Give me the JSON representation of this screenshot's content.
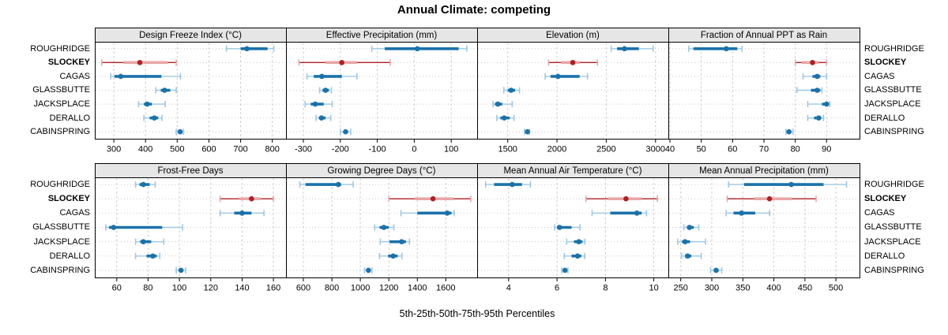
{
  "title": "Annual Climate: competing",
  "xlabel": "5th-25th-50th-75th-95th Percentiles",
  "sites": [
    {
      "name": "ROUGHRIDGE",
      "highlight": false
    },
    {
      "name": "SLOCKEY",
      "highlight": true
    },
    {
      "name": "CAGAS",
      "highlight": false
    },
    {
      "name": "GLASSBUTTE",
      "highlight": false
    },
    {
      "name": "JACKSPLACE",
      "highlight": false
    },
    {
      "name": "DERALLO",
      "highlight": false
    },
    {
      "name": "CABINSPRING",
      "highlight": false
    }
  ],
  "colors": {
    "blue": "#1a72ab",
    "blue_light": "#9ec8e2",
    "red": "#b01f24",
    "red_light": "#e8a6a6",
    "grid": "#c9c9c9",
    "strip_bg": "#e6e6e6",
    "border": "#000000"
  },
  "chart_data": {
    "type": "dotplot-percentiles",
    "title": "Annual Climate: competing",
    "xlabel": "5th-25th-50th-75th-95th Percentiles",
    "percentile_labels": [
      "5th",
      "25th",
      "50th",
      "75th",
      "95th"
    ],
    "rows": [
      "ROUGHRIDGE",
      "SLOCKEY",
      "CAGAS",
      "GLASSBUTTE",
      "JACKSPLACE",
      "DERALLO",
      "CABINSPRING"
    ],
    "highlight_row": "SLOCKEY",
    "legend_position": "none",
    "grid": true,
    "panels": [
      {
        "title": "Design Freeze Index (°C)",
        "grid_row": 1,
        "ticks": [
          300,
          400,
          500,
          600,
          700,
          800
        ],
        "xlim": [
          240,
          843
        ],
        "values": [
          [
            655,
            700,
            720,
            785,
            805
          ],
          [
            262,
            330,
            382,
            470,
            497
          ],
          [
            290,
            302,
            322,
            450,
            510
          ],
          [
            432,
            448,
            460,
            478,
            497
          ],
          [
            378,
            395,
            405,
            420,
            462
          ],
          [
            395,
            413,
            428,
            440,
            452
          ],
          [
            497,
            504,
            509,
            514,
            519
          ]
        ]
      },
      {
        "title": "Effective Precipitation (mm)",
        "grid_row": 1,
        "ticks": [
          -300,
          -200,
          -100,
          0,
          100
        ],
        "xlim": [
          -347,
          170
        ],
        "values": [
          [
            -115,
            -80,
            8,
            120,
            142
          ],
          [
            -312,
            -240,
            -196,
            -155,
            -65
          ],
          [
            -290,
            -272,
            -250,
            -196,
            -155
          ],
          [
            -256,
            -248,
            -240,
            -231,
            -224
          ],
          [
            -295,
            -280,
            -268,
            -245,
            -222
          ],
          [
            -266,
            -258,
            -251,
            -240,
            -226
          ],
          [
            -200,
            -192,
            -186,
            -179,
            -172
          ]
        ]
      },
      {
        "title": "Elevation (m)",
        "grid_row": 1,
        "ticks": [
          1500,
          2000,
          2500,
          3000
        ],
        "xlim": [
          1190,
          3130
        ],
        "values": [
          [
            2550,
            2610,
            2685,
            2830,
            2975
          ],
          [
            1915,
            2040,
            2160,
            2230,
            2410
          ],
          [
            1880,
            1935,
            2010,
            2230,
            2310
          ],
          [
            1460,
            1500,
            1535,
            1575,
            1620
          ],
          [
            1350,
            1370,
            1400,
            1445,
            1545
          ],
          [
            1390,
            1425,
            1465,
            1520,
            1565
          ],
          [
            1670,
            1685,
            1700,
            1712,
            1722
          ]
        ]
      },
      {
        "title": "Fraction of Annual PPT as Rain",
        "grid_row": 1,
        "ticks": [
          40,
          50,
          60,
          70,
          80,
          90
        ],
        "xlim": [
          39.5,
          100.5
        ],
        "values": [
          [
            46,
            47.5,
            58,
            61.5,
            63
          ],
          [
            80,
            82,
            85.5,
            87.5,
            90
          ],
          [
            82.5,
            85.5,
            87,
            88,
            90
          ],
          [
            80.5,
            85,
            87,
            88,
            88.5
          ],
          [
            84,
            88.5,
            90,
            90.5,
            91
          ],
          [
            84,
            86,
            87.5,
            88,
            89
          ],
          [
            77,
            77.5,
            78,
            78.7,
            79.3
          ]
        ]
      },
      {
        "title": "Frost-Free Days",
        "grid_row": 2,
        "ticks": [
          60,
          80,
          100,
          120,
          140,
          160
        ],
        "xlim": [
          46,
          168
        ],
        "values": [
          [
            72,
            74.5,
            77,
            81,
            84.5
          ],
          [
            126,
            138,
            146,
            152,
            160
          ],
          [
            126,
            135,
            140,
            146,
            154
          ],
          [
            53,
            55,
            58,
            89,
            102
          ],
          [
            72,
            75,
            77,
            82,
            90
          ],
          [
            72,
            79,
            83,
            85.5,
            87.5
          ],
          [
            98,
            100,
            101,
            102.5,
            104
          ]
        ]
      },
      {
        "title": "Growing Degree Days (°C)",
        "grid_row": 2,
        "ticks": [
          600,
          800,
          1000,
          1200,
          1400,
          1600
        ],
        "xlim": [
          478,
          1820
        ],
        "values": [
          [
            575,
            615,
            845,
            865,
            950
          ],
          [
            1200,
            1380,
            1510,
            1655,
            1775
          ],
          [
            1285,
            1400,
            1610,
            1640,
            1660
          ],
          [
            1100,
            1135,
            1165,
            1200,
            1235
          ],
          [
            1140,
            1205,
            1290,
            1320,
            1345
          ],
          [
            1135,
            1195,
            1230,
            1262,
            1292
          ],
          [
            1030,
            1045,
            1057,
            1070,
            1082
          ]
        ]
      },
      {
        "title": "Mean Annual Air Temperature (°C)",
        "grid_row": 2,
        "ticks": [
          4,
          6,
          8,
          10
        ],
        "xlim": [
          2.7,
          10.6
        ],
        "values": [
          [
            3.05,
            3.4,
            4.15,
            4.55,
            4.9
          ],
          [
            7.2,
            8.1,
            8.85,
            9.5,
            10.15
          ],
          [
            7.45,
            8.2,
            9.3,
            9.5,
            9.7
          ],
          [
            5.9,
            6.0,
            6.1,
            6.6,
            6.95
          ],
          [
            6.4,
            6.7,
            6.9,
            7.05,
            7.15
          ],
          [
            6.3,
            6.6,
            6.85,
            7.0,
            7.15
          ],
          [
            6.2,
            6.27,
            6.33,
            6.4,
            6.45
          ]
        ]
      },
      {
        "title": "Mean Annual Precipitation (mm)",
        "grid_row": 2,
        "ticks": [
          250,
          300,
          350,
          400,
          450,
          500
        ],
        "xlim": [
          230,
          538
        ],
        "values": [
          [
            327,
            352,
            428,
            480,
            517
          ],
          [
            325,
            368,
            393,
            430,
            468
          ],
          [
            323,
            335,
            348,
            370,
            393
          ],
          [
            255,
            260,
            264,
            271,
            279
          ],
          [
            245,
            252,
            257,
            265,
            290
          ],
          [
            251,
            257,
            261,
            267,
            283
          ],
          [
            298,
            303,
            307,
            311,
            316
          ]
        ]
      }
    ]
  }
}
